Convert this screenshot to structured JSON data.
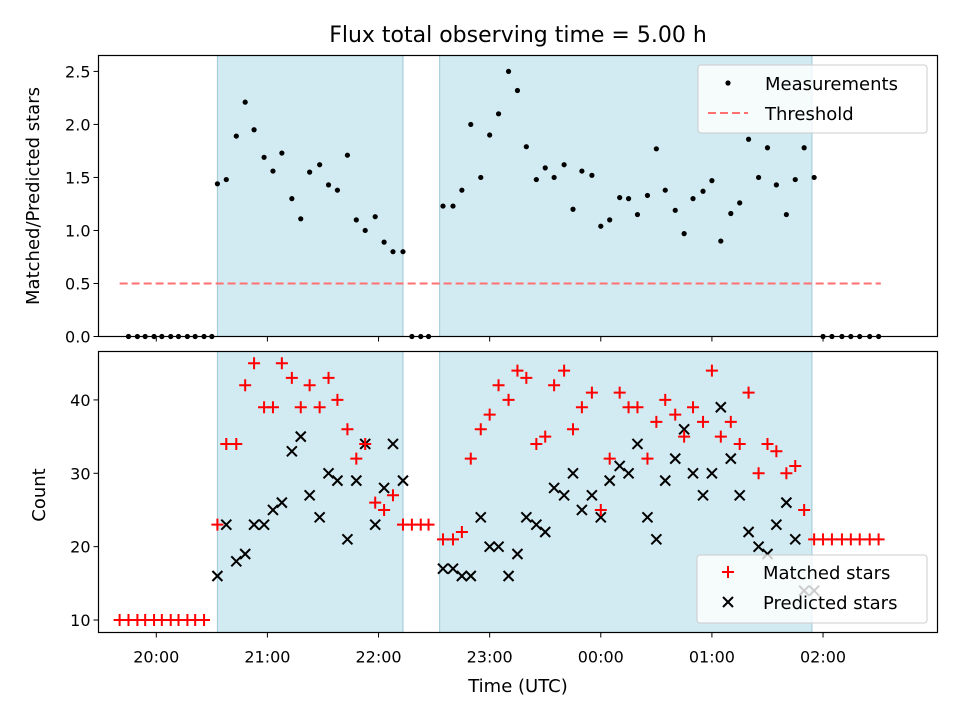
{
  "chart_data": [
    {
      "type": "scatter",
      "title": "Flux total observing time = 5.00 h",
      "xlabel": "",
      "ylabel": "Matched/Predicted stars",
      "xlim_hours": [
        19.48,
        27.03
      ],
      "ylim": [
        0,
        2.65
      ],
      "yticks": [
        0.0,
        0.5,
        1.0,
        1.5,
        2.0,
        2.5
      ],
      "ytick_labels": [
        "0.0",
        "0.5",
        "1.0",
        "1.5",
        "2.0",
        "2.5"
      ],
      "legend": {
        "position": "top-right",
        "entries": [
          "Measurements",
          "Threshold"
        ]
      },
      "threshold": {
        "name": "Threshold",
        "value": 0.5,
        "x_range_hours": [
          19.67,
          26.52
        ]
      },
      "series": [
        {
          "name": "Measurements",
          "x_hours": [
            19.75,
            19.83,
            19.9,
            19.98,
            20.05,
            20.13,
            20.2,
            20.28,
            20.35,
            20.43,
            20.5,
            20.55,
            20.63,
            20.72,
            20.8,
            20.88,
            20.97,
            21.05,
            21.13,
            21.22,
            21.3,
            21.38,
            21.47,
            21.55,
            21.63,
            21.72,
            21.8,
            21.88,
            21.97,
            22.05,
            22.13,
            22.22,
            22.3,
            22.38,
            22.45,
            22.58,
            22.67,
            22.75,
            22.83,
            22.92,
            23.0,
            23.08,
            23.17,
            23.25,
            23.33,
            23.42,
            23.5,
            23.58,
            23.67,
            23.75,
            23.83,
            23.92,
            24.0,
            24.08,
            24.17,
            24.25,
            24.33,
            24.42,
            24.5,
            24.58,
            24.67,
            24.75,
            24.83,
            24.92,
            25.0,
            25.08,
            25.17,
            25.25,
            25.33,
            25.42,
            25.5,
            25.58,
            25.67,
            25.75,
            25.83,
            25.92,
            26.0,
            26.08,
            26.17,
            26.25,
            26.33,
            26.42,
            26.5
          ],
          "y": [
            0,
            0,
            0,
            0,
            0,
            0,
            0,
            0,
            0,
            0,
            0,
            1.44,
            1.48,
            1.89,
            2.21,
            1.95,
            1.69,
            1.56,
            1.73,
            1.3,
            1.11,
            1.55,
            1.62,
            1.43,
            1.38,
            1.71,
            1.1,
            1.0,
            1.13,
            0.89,
            0.8,
            0.8,
            0,
            0,
            0,
            1.23,
            1.23,
            1.38,
            2.0,
            1.5,
            1.9,
            2.1,
            2.5,
            2.32,
            1.79,
            1.48,
            1.59,
            1.5,
            1.62,
            1.2,
            1.56,
            1.52,
            1.04,
            1.1,
            1.31,
            1.3,
            1.15,
            1.33,
            1.77,
            1.38,
            1.19,
            0.97,
            1.3,
            1.37,
            1.47,
            0.9,
            1.16,
            1.26,
            1.86,
            1.5,
            1.78,
            1.43,
            1.15,
            1.48,
            1.78,
            1.5,
            0,
            0,
            0,
            0,
            0,
            0,
            0
          ],
          "color": "#000000"
        }
      ]
    },
    {
      "type": "scatter",
      "title": "",
      "xlabel": "Time (UTC)",
      "ylabel": "Count",
      "xlim_hours": [
        19.48,
        27.03
      ],
      "ylim": [
        8.3,
        46.6
      ],
      "yticks": [
        10,
        20,
        30,
        40
      ],
      "ytick_labels": [
        "10",
        "20",
        "30",
        "40"
      ],
      "xticks_hours": [
        20,
        21,
        22,
        23,
        24,
        25,
        26
      ],
      "xtick_labels": [
        "20:00",
        "21:00",
        "22:00",
        "23:00",
        "00:00",
        "01:00",
        "02:00"
      ],
      "legend": {
        "position": "bottom-right",
        "entries": [
          "Matched stars",
          "Predicted stars"
        ]
      },
      "series": [
        {
          "name": "Matched stars",
          "marker": "+",
          "color": "#ff0000",
          "x_hours": [
            19.67,
            19.75,
            19.83,
            19.9,
            19.98,
            20.05,
            20.13,
            20.2,
            20.28,
            20.35,
            20.43,
            20.55,
            20.63,
            20.72,
            20.8,
            20.88,
            20.97,
            21.05,
            21.13,
            21.22,
            21.3,
            21.38,
            21.47,
            21.55,
            21.63,
            21.72,
            21.8,
            21.88,
            21.97,
            22.05,
            22.13,
            22.22,
            22.3,
            22.38,
            22.45,
            22.58,
            22.67,
            22.75,
            22.83,
            22.92,
            23.0,
            23.08,
            23.17,
            23.25,
            23.33,
            23.42,
            23.5,
            23.58,
            23.67,
            23.75,
            23.83,
            23.92,
            24.0,
            24.08,
            24.17,
            24.25,
            24.33,
            24.42,
            24.5,
            24.58,
            24.67,
            24.75,
            24.83,
            24.92,
            25.0,
            25.08,
            25.17,
            25.25,
            25.33,
            25.42,
            25.5,
            25.58,
            25.67,
            25.75,
            25.83,
            25.92,
            26.0,
            26.08,
            26.17,
            26.25,
            26.33,
            26.42,
            26.5
          ],
          "y": [
            10,
            10,
            10,
            10,
            10,
            10,
            10,
            10,
            10,
            10,
            10,
            23,
            34,
            34,
            42,
            45,
            39,
            39,
            45,
            43,
            39,
            42,
            39,
            43,
            40,
            36,
            32,
            34,
            26,
            25,
            27,
            23,
            23,
            23,
            23,
            21,
            21,
            22,
            32,
            36,
            38,
            42,
            40,
            44,
            43,
            34,
            35,
            42,
            44,
            36,
            39,
            41,
            25,
            32,
            41,
            39,
            39,
            32,
            37,
            40,
            38,
            35,
            39,
            37,
            44,
            35,
            37,
            34,
            41,
            30,
            34,
            33,
            30,
            31,
            25,
            21,
            21,
            21,
            21,
            21,
            21,
            21,
            21
          ]
        },
        {
          "name": "Predicted stars",
          "marker": "x",
          "color": "#000000",
          "x_hours": [
            20.55,
            20.63,
            20.72,
            20.8,
            20.88,
            20.97,
            21.05,
            21.13,
            21.22,
            21.3,
            21.38,
            21.47,
            21.55,
            21.63,
            21.72,
            21.8,
            21.88,
            21.97,
            22.05,
            22.13,
            22.22,
            22.58,
            22.67,
            22.75,
            22.83,
            22.92,
            23.0,
            23.08,
            23.17,
            23.25,
            23.33,
            23.42,
            23.5,
            23.58,
            23.67,
            23.75,
            23.83,
            23.92,
            24.0,
            24.08,
            24.17,
            24.25,
            24.33,
            24.42,
            24.5,
            24.58,
            24.67,
            24.75,
            24.83,
            24.92,
            25.0,
            25.08,
            25.17,
            25.25,
            25.33,
            25.42,
            25.5,
            25.58,
            25.67,
            25.75,
            25.83,
            25.92
          ],
          "y": [
            16,
            23,
            18,
            19,
            23,
            23,
            25,
            26,
            33,
            35,
            27,
            24,
            30,
            29,
            21,
            29,
            34,
            23,
            28,
            34,
            29,
            17,
            17,
            16,
            16,
            24,
            20,
            20,
            16,
            19,
            24,
            23,
            22,
            28,
            27,
            30,
            25,
            27,
            24,
            29,
            31,
            30,
            34,
            24,
            21,
            29,
            32,
            36,
            30,
            27,
            30,
            39,
            32,
            27,
            22,
            20,
            19,
            23,
            26,
            21,
            14,
            14
          ]
        }
      ]
    }
  ],
  "observing_windows_hours": [
    [
      20.55,
      22.22
    ],
    [
      22.55,
      25.9
    ]
  ],
  "style": {
    "window_color": "#add8e6",
    "threshold_color": "#ff7070"
  }
}
